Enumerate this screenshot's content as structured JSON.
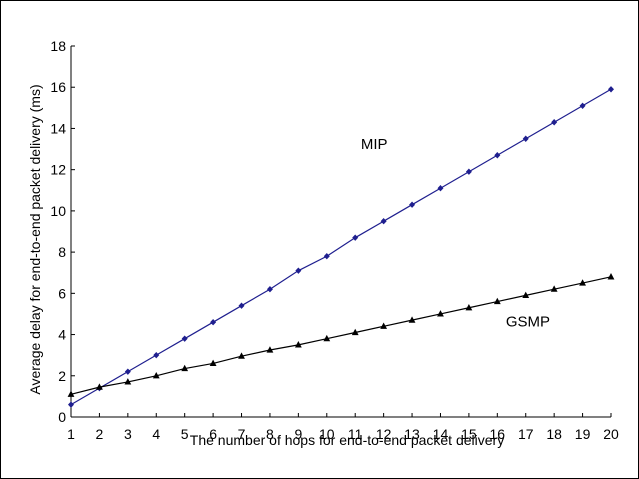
{
  "chart_data": {
    "type": "line",
    "title": "",
    "xlabel": "The number of hops for end-to-end packet delivery",
    "ylabel": "Average delay for end-to-end packet delivery (ms)",
    "xlim": [
      1,
      20
    ],
    "ylim": [
      0,
      18
    ],
    "xticks": [
      1,
      2,
      3,
      4,
      5,
      6,
      7,
      8,
      9,
      10,
      11,
      12,
      13,
      14,
      15,
      16,
      17,
      18,
      19,
      20
    ],
    "yticks": [
      0,
      2,
      4,
      6,
      8,
      10,
      12,
      14,
      16,
      18
    ],
    "grid": false,
    "x": [
      1,
      2,
      3,
      4,
      5,
      6,
      7,
      8,
      9,
      10,
      11,
      12,
      13,
      14,
      15,
      16,
      17,
      18,
      19,
      20
    ],
    "series": [
      {
        "name": "MIP",
        "color": "#1f1f8f",
        "marker": "diamond",
        "values": [
          0.6,
          1.4,
          2.2,
          3.0,
          3.8,
          4.6,
          5.4,
          6.2,
          7.1,
          7.8,
          8.7,
          9.5,
          10.3,
          11.1,
          11.9,
          12.7,
          13.5,
          14.3,
          15.1,
          15.9
        ]
      },
      {
        "name": "GSMP",
        "color": "#000000",
        "marker": "triangle",
        "values": [
          1.1,
          1.45,
          1.7,
          2.0,
          2.35,
          2.6,
          2.95,
          3.25,
          3.5,
          3.8,
          4.1,
          4.4,
          4.7,
          5.0,
          5.3,
          5.6,
          5.9,
          6.2,
          6.5,
          6.8
        ]
      }
    ]
  }
}
